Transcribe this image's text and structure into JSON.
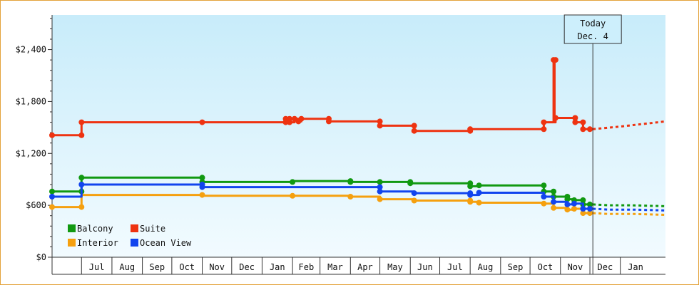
{
  "chart_data": {
    "type": "line",
    "title": "",
    "xlabel": "",
    "ylabel": "",
    "ylim": [
      0,
      2800
    ],
    "y_ticks": [
      {
        "value": 0,
        "label": "$0"
      },
      {
        "value": 600,
        "label": "$600"
      },
      {
        "value": 1200,
        "label": "$1,200"
      },
      {
        "value": 1800,
        "label": "$1,800"
      },
      {
        "value": 2400,
        "label": "$2,400"
      }
    ],
    "x_range": [
      "2024-06-01",
      "2026-02-16"
    ],
    "x_ticks": [
      {
        "label": "Jul",
        "date": "2024-07-01",
        "end": "2024-08-01"
      },
      {
        "label": "Aug",
        "date": "2024-08-01",
        "end": "2024-09-01"
      },
      {
        "label": "Sep",
        "date": "2024-09-01",
        "end": "2024-10-01"
      },
      {
        "label": "Oct",
        "date": "2024-10-01",
        "end": "2024-11-01"
      },
      {
        "label": "Nov",
        "date": "2024-11-01",
        "end": "2024-12-01"
      },
      {
        "label": "Dec",
        "date": "2024-12-01",
        "end": "2025-01-01"
      },
      {
        "label": "Jan",
        "date": "2025-01-01",
        "end": "2025-02-01"
      },
      {
        "label": "Feb",
        "date": "2025-02-01",
        "end": "2025-03-01"
      },
      {
        "label": "Mar",
        "date": "2025-03-01",
        "end": "2025-04-01"
      },
      {
        "label": "Apr",
        "date": "2025-04-01",
        "end": "2025-05-01"
      },
      {
        "label": "May",
        "date": "2025-05-01",
        "end": "2025-06-01"
      },
      {
        "label": "Jun",
        "date": "2025-06-01",
        "end": "2025-07-01"
      },
      {
        "label": "Jul",
        "date": "2025-07-01",
        "end": "2025-08-01"
      },
      {
        "label": "Aug",
        "date": "2025-08-01",
        "end": "2025-09-01"
      },
      {
        "label": "Sep",
        "date": "2025-09-01",
        "end": "2025-10-01"
      },
      {
        "label": "Oct",
        "date": "2025-10-01",
        "end": "2025-11-01"
      },
      {
        "label": "Nov",
        "date": "2025-11-01",
        "end": "2025-12-01"
      },
      {
        "label": "Dec",
        "date": "2025-12-01",
        "end": "2026-01-01"
      },
      {
        "label": "Jan",
        "date": "2026-01-01",
        "end": "2026-02-01"
      }
    ],
    "today": {
      "line1": "Today",
      "line2": "Dec. 4",
      "date": "2025-12-04"
    },
    "legend": {
      "placement": "bottom-left"
    },
    "series": [
      {
        "name": "Balcony",
        "color": "#119911",
        "step": true,
        "points": [
          [
            "2024-06-01",
            760
          ],
          [
            "2024-07-01",
            760
          ],
          [
            "2024-07-01",
            920
          ],
          [
            "2024-11-01",
            920
          ],
          [
            "2024-11-01",
            870
          ],
          [
            "2025-02-01",
            870
          ],
          [
            "2025-02-01",
            880
          ],
          [
            "2025-04-01",
            880
          ],
          [
            "2025-04-01",
            870
          ],
          [
            "2025-05-01",
            870
          ],
          [
            "2025-06-01",
            870
          ],
          [
            "2025-06-01",
            855
          ],
          [
            "2025-08-01",
            855
          ],
          [
            "2025-08-01",
            820
          ],
          [
            "2025-08-10",
            820
          ],
          [
            "2025-08-10",
            830
          ],
          [
            "2025-10-15",
            830
          ],
          [
            "2025-10-15",
            760
          ],
          [
            "2025-10-25",
            760
          ],
          [
            "2025-10-25",
            700
          ],
          [
            "2025-11-08",
            700
          ],
          [
            "2025-11-08",
            670
          ],
          [
            "2025-11-15",
            670
          ],
          [
            "2025-11-15",
            660
          ],
          [
            "2025-11-24",
            660
          ],
          [
            "2025-11-24",
            610
          ],
          [
            "2025-12-04",
            610
          ]
        ],
        "markers": [
          [
            "2024-06-01",
            760
          ],
          [
            "2024-07-01",
            760
          ],
          [
            "2024-07-01",
            920
          ],
          [
            "2024-11-01",
            920
          ],
          [
            "2024-11-01",
            870
          ],
          [
            "2025-02-01",
            870
          ],
          [
            "2025-04-01",
            880
          ],
          [
            "2025-04-01",
            870
          ],
          [
            "2025-05-01",
            870
          ],
          [
            "2025-06-01",
            870
          ],
          [
            "2025-06-01",
            855
          ],
          [
            "2025-08-01",
            855
          ],
          [
            "2025-08-01",
            820
          ],
          [
            "2025-08-10",
            830
          ],
          [
            "2025-10-15",
            830
          ],
          [
            "2025-10-15",
            760
          ],
          [
            "2025-10-25",
            760
          ],
          [
            "2025-10-25",
            700
          ],
          [
            "2025-11-08",
            700
          ],
          [
            "2025-11-08",
            670
          ],
          [
            "2025-11-15",
            660
          ],
          [
            "2025-11-24",
            660
          ],
          [
            "2025-11-24",
            610
          ],
          [
            "2025-12-01",
            610
          ]
        ],
        "forecast": [
          [
            "2025-12-04",
            610
          ],
          [
            "2025-12-20",
            600
          ],
          [
            "2026-01-10",
            600
          ],
          [
            "2026-02-16",
            590
          ]
        ]
      },
      {
        "name": "Suite",
        "color": "#ee3311",
        "step": true,
        "points": [
          [
            "2024-06-01",
            1410
          ],
          [
            "2024-07-01",
            1410
          ],
          [
            "2024-07-01",
            1560
          ],
          [
            "2025-01-25",
            1560
          ],
          [
            "2025-01-25",
            1600
          ],
          [
            "2025-01-29",
            1600
          ],
          [
            "2025-01-29",
            1560
          ],
          [
            "2025-02-03",
            1560
          ],
          [
            "2025-02-03",
            1600
          ],
          [
            "2025-02-07",
            1600
          ],
          [
            "2025-02-07",
            1570
          ],
          [
            "2025-02-10",
            1570
          ],
          [
            "2025-02-10",
            1600
          ],
          [
            "2025-03-10",
            1600
          ],
          [
            "2025-03-10",
            1570
          ],
          [
            "2025-05-01",
            1570
          ],
          [
            "2025-05-01",
            1520
          ],
          [
            "2025-06-05",
            1520
          ],
          [
            "2025-06-05",
            1460
          ],
          [
            "2025-08-01",
            1460
          ],
          [
            "2025-08-01",
            1480
          ],
          [
            "2025-10-15",
            1480
          ],
          [
            "2025-10-15",
            1560
          ],
          [
            "2025-10-25",
            1560
          ],
          [
            "2025-10-25",
            2280
          ],
          [
            "2025-10-26",
            2280
          ],
          [
            "2025-10-26",
            1560
          ],
          [
            "2025-10-27",
            1560
          ],
          [
            "2025-10-27",
            1610
          ],
          [
            "2025-11-16",
            1610
          ],
          [
            "2025-11-16",
            1560
          ],
          [
            "2025-11-24",
            1560
          ],
          [
            "2025-11-24",
            1480
          ],
          [
            "2025-12-04",
            1480
          ]
        ],
        "markers": [
          [
            "2024-06-01",
            1410
          ],
          [
            "2024-07-01",
            1410
          ],
          [
            "2024-07-01",
            1560
          ],
          [
            "2024-11-01",
            1560
          ],
          [
            "2025-01-25",
            1560
          ],
          [
            "2025-01-25",
            1600
          ],
          [
            "2025-01-29",
            1600
          ],
          [
            "2025-01-29",
            1560
          ],
          [
            "2025-02-03",
            1600
          ],
          [
            "2025-02-07",
            1570
          ],
          [
            "2025-02-10",
            1600
          ],
          [
            "2025-03-10",
            1600
          ],
          [
            "2025-03-10",
            1570
          ],
          [
            "2025-05-01",
            1570
          ],
          [
            "2025-05-01",
            1520
          ],
          [
            "2025-06-05",
            1520
          ],
          [
            "2025-06-05",
            1460
          ],
          [
            "2025-08-01",
            1460
          ],
          [
            "2025-08-01",
            1480
          ],
          [
            "2025-10-15",
            1480
          ],
          [
            "2025-10-15",
            1560
          ],
          [
            "2025-10-25",
            2280
          ],
          [
            "2025-10-27",
            2280
          ],
          [
            "2025-10-27",
            1610
          ],
          [
            "2025-11-16",
            1610
          ],
          [
            "2025-11-16",
            1560
          ],
          [
            "2025-11-24",
            1560
          ],
          [
            "2025-11-24",
            1480
          ],
          [
            "2025-12-01",
            1480
          ]
        ],
        "forecast": [
          [
            "2025-12-04",
            1480
          ],
          [
            "2026-01-01",
            1510
          ],
          [
            "2026-02-16",
            1570
          ]
        ]
      },
      {
        "name": "Interior",
        "color": "#f5a00f",
        "step": true,
        "points": [
          [
            "2024-06-01",
            580
          ],
          [
            "2024-07-01",
            580
          ],
          [
            "2024-07-01",
            720
          ],
          [
            "2024-11-01",
            720
          ],
          [
            "2024-11-01",
            710
          ],
          [
            "2025-04-01",
            710
          ],
          [
            "2025-04-01",
            700
          ],
          [
            "2025-05-01",
            700
          ],
          [
            "2025-05-01",
            670
          ],
          [
            "2025-06-05",
            670
          ],
          [
            "2025-06-05",
            655
          ],
          [
            "2025-08-01",
            655
          ],
          [
            "2025-08-01",
            640
          ],
          [
            "2025-08-10",
            640
          ],
          [
            "2025-08-10",
            630
          ],
          [
            "2025-10-15",
            630
          ],
          [
            "2025-10-15",
            620
          ],
          [
            "2025-10-25",
            620
          ],
          [
            "2025-10-25",
            570
          ],
          [
            "2025-11-08",
            570
          ],
          [
            "2025-11-08",
            550
          ],
          [
            "2025-11-15",
            550
          ],
          [
            "2025-11-15",
            560
          ],
          [
            "2025-11-24",
            560
          ],
          [
            "2025-11-24",
            510
          ],
          [
            "2025-12-04",
            510
          ]
        ],
        "markers": [
          [
            "2024-06-01",
            580
          ],
          [
            "2024-07-01",
            580
          ],
          [
            "2024-11-01",
            720
          ],
          [
            "2025-02-01",
            710
          ],
          [
            "2025-04-01",
            700
          ],
          [
            "2025-05-01",
            670
          ],
          [
            "2025-06-05",
            655
          ],
          [
            "2025-08-01",
            655
          ],
          [
            "2025-08-01",
            640
          ],
          [
            "2025-08-10",
            630
          ],
          [
            "2025-10-15",
            620
          ],
          [
            "2025-10-25",
            570
          ],
          [
            "2025-11-08",
            550
          ],
          [
            "2025-11-15",
            560
          ],
          [
            "2025-11-24",
            510
          ],
          [
            "2025-12-01",
            510
          ]
        ],
        "forecast": [
          [
            "2025-12-04",
            510
          ],
          [
            "2025-12-20",
            500
          ],
          [
            "2026-01-15",
            500
          ],
          [
            "2026-02-16",
            490
          ]
        ]
      },
      {
        "name": "Ocean View",
        "color": "#1144ee",
        "step": true,
        "points": [
          [
            "2024-06-01",
            700
          ],
          [
            "2024-07-01",
            700
          ],
          [
            "2024-07-01",
            840
          ],
          [
            "2024-11-01",
            840
          ],
          [
            "2024-11-01",
            810
          ],
          [
            "2025-05-01",
            810
          ],
          [
            "2025-05-01",
            760
          ],
          [
            "2025-06-05",
            760
          ],
          [
            "2025-06-05",
            740
          ],
          [
            "2025-08-01",
            740
          ],
          [
            "2025-08-01",
            720
          ],
          [
            "2025-08-10",
            720
          ],
          [
            "2025-08-10",
            745
          ],
          [
            "2025-10-15",
            745
          ],
          [
            "2025-10-15",
            700
          ],
          [
            "2025-10-25",
            700
          ],
          [
            "2025-10-25",
            640
          ],
          [
            "2025-11-08",
            640
          ],
          [
            "2025-11-08",
            610
          ],
          [
            "2025-11-15",
            610
          ],
          [
            "2025-11-15",
            620
          ],
          [
            "2025-11-24",
            620
          ],
          [
            "2025-11-24",
            560
          ],
          [
            "2025-12-04",
            560
          ]
        ],
        "markers": [
          [
            "2024-06-01",
            700
          ],
          [
            "2024-07-01",
            840
          ],
          [
            "2024-11-01",
            840
          ],
          [
            "2024-11-01",
            810
          ],
          [
            "2025-05-01",
            810
          ],
          [
            "2025-05-01",
            760
          ],
          [
            "2025-06-05",
            740
          ],
          [
            "2025-08-01",
            740
          ],
          [
            "2025-08-01",
            720
          ],
          [
            "2025-08-10",
            745
          ],
          [
            "2025-10-15",
            700
          ],
          [
            "2025-10-25",
            640
          ],
          [
            "2025-11-08",
            610
          ],
          [
            "2025-11-15",
            620
          ],
          [
            "2025-11-24",
            560
          ],
          [
            "2025-12-01",
            560
          ]
        ],
        "forecast": [
          [
            "2025-12-04",
            560
          ],
          [
            "2025-12-20",
            550
          ],
          [
            "2026-01-15",
            550
          ],
          [
            "2026-02-16",
            540
          ]
        ]
      }
    ]
  }
}
